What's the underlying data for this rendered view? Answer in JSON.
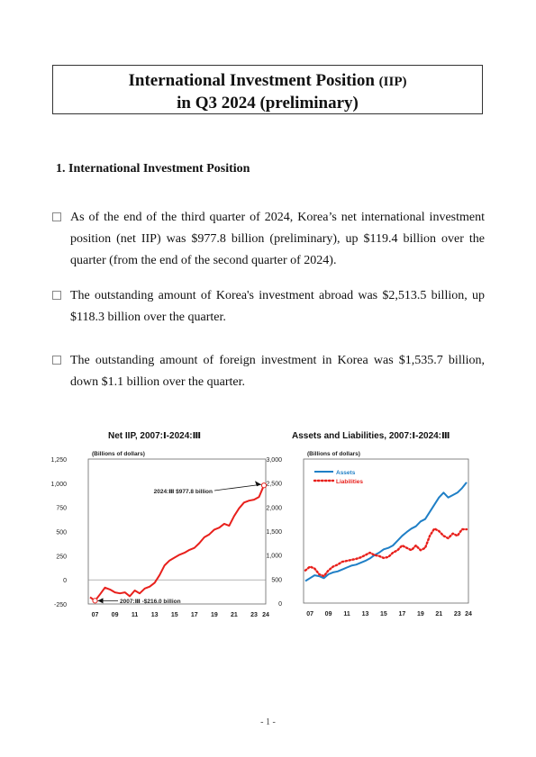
{
  "title": {
    "line1_main": "International Investment Position",
    "line1_abbr": "(IIP)",
    "line2": "in Q3 2024 (preliminary)"
  },
  "section": {
    "heading": "1. International Investment Position"
  },
  "bullets": [
    {
      "text": "As of the end of the third quarter of 2024, Korea’s net international investment position (net IIP) was $977.8 billion (preliminary), up $119.4 billion over the quarter (from the end of the second quarter of 2024)."
    },
    {
      "text": "The outstanding amount of Korea's investment abroad was $2,513.5 billion, up $118.3 billion over the quarter."
    },
    {
      "text": "The outstanding amount of foreign investment in Korea was $1,535.7 billion, down $1.1 billion over the quarter."
    }
  ],
  "chart_data": [
    {
      "type": "line",
      "title": "Net IIP, 2007:Ⅰ-2024:Ⅲ",
      "ylabel": "(Billions of dollars)",
      "ylim": [
        -250,
        1250
      ],
      "yticks": [
        "1,250",
        "1,000",
        "750",
        "500",
        "250",
        "0",
        "-250"
      ],
      "xticks": [
        "07",
        "09",
        "11",
        "13",
        "15",
        "17",
        "19",
        "21",
        "23",
        "24"
      ],
      "color": "#e8201c",
      "annotations": [
        "2024:Ⅲ $977.8 billion",
        "2007:Ⅲ -$216.0 billion"
      ],
      "series": [
        {
          "x": [
            "2007:Ⅰ",
            "2007:Ⅲ",
            "2008:Ⅰ",
            "2008:Ⅲ",
            "2009:Ⅰ",
            "2009:Ⅲ",
            "2010:Ⅰ",
            "2010:Ⅲ",
            "2011:Ⅰ",
            "2011:Ⅲ",
            "2012:Ⅰ",
            "2012:Ⅲ",
            "2013:Ⅰ",
            "2013:Ⅲ",
            "2014:Ⅰ",
            "2014:Ⅲ",
            "2015:Ⅰ",
            "2015:Ⅲ",
            "2016:Ⅰ",
            "2016:Ⅲ",
            "2017:Ⅰ",
            "2017:Ⅲ",
            "2018:Ⅰ",
            "2018:Ⅲ",
            "2019:Ⅰ",
            "2019:Ⅲ",
            "2020:Ⅰ",
            "2020:Ⅲ",
            "2021:Ⅰ",
            "2021:Ⅲ",
            "2022:Ⅰ",
            "2022:Ⅲ",
            "2023:Ⅰ",
            "2023:Ⅲ",
            "2024:Ⅰ",
            "2024:Ⅲ"
          ],
          "values": [
            -180,
            -216,
            -150,
            -80,
            -100,
            -130,
            -140,
            -130,
            -170,
            -110,
            -140,
            -90,
            -70,
            -30,
            50,
            150,
            200,
            230,
            260,
            280,
            310,
            330,
            380,
            440,
            470,
            520,
            540,
            580,
            560,
            660,
            740,
            800,
            820,
            830,
            858,
            977.8
          ]
        }
      ]
    },
    {
      "type": "line",
      "title": "Assets and Liabilities, 2007:Ⅰ-2024:Ⅲ",
      "ylabel": "(Billions of dollars)",
      "ylim": [
        0,
        3000
      ],
      "yticks": [
        "3,000",
        "2,500",
        "2,000",
        "1,500",
        "1,000",
        "500",
        "0"
      ],
      "xticks": [
        "07",
        "09",
        "11",
        "13",
        "15",
        "17",
        "19",
        "21",
        "23",
        "24"
      ],
      "legend": "top-left",
      "series": [
        {
          "name": "Assets",
          "color": "#1f7fc6",
          "values": [
            460,
            520,
            580,
            560,
            520,
            600,
            640,
            660,
            700,
            740,
            780,
            800,
            840,
            880,
            930,
            1000,
            1050,
            1120,
            1150,
            1200,
            1300,
            1400,
            1480,
            1550,
            1600,
            1700,
            1750,
            1900,
            2050,
            2200,
            2300,
            2200,
            2250,
            2300,
            2395,
            2513.5
          ]
        },
        {
          "name": "Liabilities",
          "color": "#e8201c",
          "values": [
            680,
            760,
            720,
            600,
            560,
            680,
            760,
            800,
            860,
            880,
            900,
            920,
            950,
            1000,
            1050,
            1000,
            980,
            940,
            960,
            1050,
            1100,
            1200,
            1150,
            1100,
            1200,
            1100,
            1150,
            1400,
            1550,
            1500,
            1400,
            1350,
            1450,
            1400,
            1536.8,
            1535.7
          ]
        }
      ]
    }
  ],
  "page_number": "- 1 -"
}
